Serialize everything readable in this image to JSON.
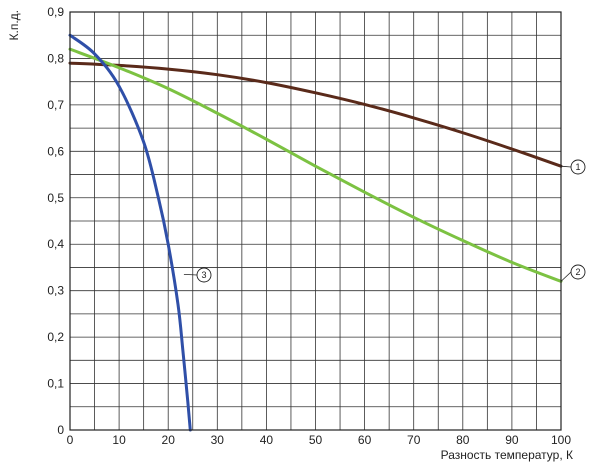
{
  "chart_data": {
    "type": "line",
    "title": "",
    "xlabel": "Разность температур, К",
    "ylabel": "К.п.д.",
    "xlim": [
      0,
      100
    ],
    "ylim": [
      0,
      0.9
    ],
    "x_ticks": [
      "0",
      "10",
      "20",
      "30",
      "40",
      "50",
      "60",
      "70",
      "80",
      "90",
      "100"
    ],
    "y_ticks": [
      "0",
      "0,1",
      "0,2",
      "0,3",
      "0,4",
      "0,5",
      "0,6",
      "0,7",
      "0,8",
      "0,9"
    ],
    "grid": true,
    "series": [
      {
        "label": "1",
        "color": "#5a2a1a",
        "x": [
          0,
          10,
          20,
          30,
          40,
          50,
          60,
          70,
          80,
          90,
          100
        ],
        "y": [
          0.79,
          0.785,
          0.777,
          0.765,
          0.748,
          0.726,
          0.701,
          0.672,
          0.64,
          0.605,
          0.568
        ]
      },
      {
        "label": "2",
        "color": "#7cc242",
        "x": [
          0,
          10,
          20,
          30,
          40,
          50,
          60,
          70,
          80,
          90,
          100
        ],
        "y": [
          0.82,
          0.78,
          0.735,
          0.682,
          0.626,
          0.568,
          0.512,
          0.458,
          0.408,
          0.361,
          0.32
        ]
      },
      {
        "label": "3",
        "color": "#2f4fa8",
        "x": [
          0,
          5,
          10,
          15,
          18,
          20,
          22,
          23,
          24,
          24.5
        ],
        "y": [
          0.85,
          0.81,
          0.74,
          0.62,
          0.5,
          0.4,
          0.27,
          0.17,
          0.06,
          0.0
        ]
      }
    ]
  }
}
